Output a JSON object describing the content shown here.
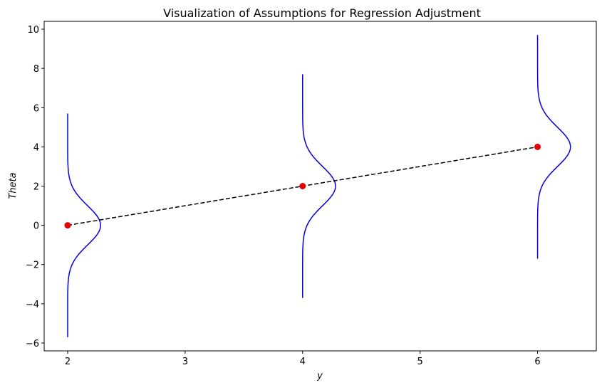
{
  "chart_data": {
    "type": "line",
    "title": "Visualization of Assumptions for Regression Adjustment",
    "xlabel": "y",
    "ylabel": "Theta",
    "xlim": [
      1.8,
      6.5
    ],
    "ylim": [
      -6.4,
      10.4
    ],
    "xticks": [
      2,
      3,
      4,
      5,
      6
    ],
    "yticks": [
      -6,
      -4,
      -2,
      0,
      2,
      4,
      6,
      8,
      10
    ],
    "grid": false,
    "regression_line": {
      "x": [
        2,
        6
      ],
      "y": [
        0,
        4
      ],
      "color": "#000000",
      "style": "dashed"
    },
    "points": {
      "x": [
        2,
        4,
        6
      ],
      "y": [
        0,
        2,
        4
      ],
      "color": "#e00000"
    },
    "density_curves": {
      "color": "#0000dd",
      "sd": 1,
      "half_range": 5.7,
      "peak_height": 0.28,
      "centers": [
        {
          "x": 2,
          "y": 0
        },
        {
          "x": 4,
          "y": 2
        },
        {
          "x": 6,
          "y": 4
        }
      ]
    }
  }
}
